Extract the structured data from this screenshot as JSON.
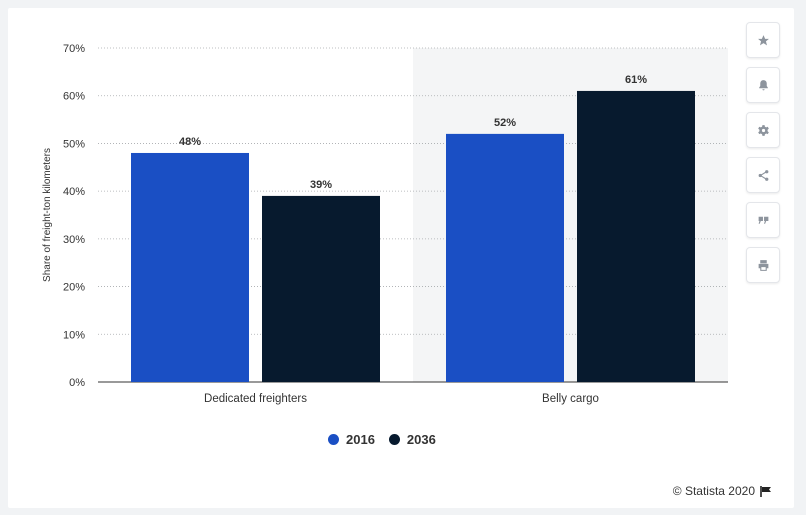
{
  "chart_data": {
    "type": "bar",
    "categories": [
      "Dedicated freighters",
      "Belly cargo"
    ],
    "series": [
      {
        "name": "2016",
        "values": [
          48,
          52
        ],
        "labels": [
          "48%",
          "52%"
        ],
        "color": "#1a4fc4"
      },
      {
        "name": "2036",
        "values": [
          39,
          61
        ],
        "labels": [
          "39%",
          "61%"
        ],
        "color": "#071a2e"
      }
    ],
    "ylabel": "Share of freight-ton kilometers",
    "ylim": [
      0,
      70
    ],
    "yticks": [
      0,
      10,
      20,
      30,
      40,
      50,
      60,
      70
    ],
    "ytick_labels": [
      "0%",
      "10%",
      "20%",
      "30%",
      "40%",
      "50%",
      "60%",
      "70%"
    ],
    "grid": true,
    "legend": "bottom-center"
  },
  "legend": {
    "item_2016": "2016",
    "item_2036": "2036"
  },
  "toolbar": {
    "icons": [
      "star-icon",
      "bell-icon",
      "gear-icon",
      "share-icon",
      "quote-icon",
      "print-icon"
    ]
  },
  "credit": {
    "text": "© Statista 2020"
  }
}
